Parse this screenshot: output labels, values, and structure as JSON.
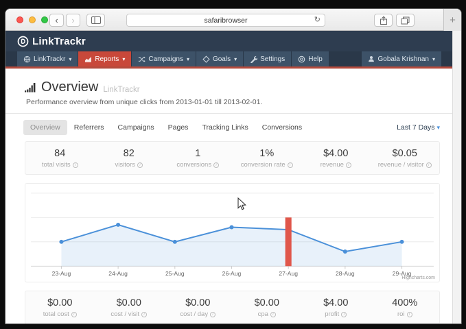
{
  "browser": {
    "url_text": "safaribrowser",
    "back_glyph": "‹",
    "forward_glyph": "›",
    "reload_glyph": "↻",
    "new_tab_glyph": "+"
  },
  "icons": {
    "caret_down": "▾",
    "info": "i"
  },
  "app": {
    "logo_text": "LinkTrackr",
    "nav": [
      {
        "label": "LinkTrackr",
        "caret": true,
        "active": false
      },
      {
        "label": "Reports",
        "caret": true,
        "active": true
      },
      {
        "label": "Campaigns",
        "caret": true,
        "active": false
      },
      {
        "label": "Goals",
        "caret": true,
        "active": false
      },
      {
        "label": "Settings",
        "caret": false,
        "active": false
      },
      {
        "label": "Help",
        "caret": false,
        "active": false
      }
    ],
    "user_name": "Gobala Krishnan"
  },
  "page": {
    "title": "Overview",
    "title_suffix": "LinkTrackr",
    "subtitle": "Performance overview from unique clicks from 2013-01-01 till 2013-02-01.",
    "tabs": [
      "Overview",
      "Referrers",
      "Campaigns",
      "Pages",
      "Tracking Links",
      "Conversions"
    ],
    "active_tab": "Overview",
    "date_range": "Last 7 Days",
    "stats_top": [
      {
        "value": "84",
        "label": "total visits"
      },
      {
        "value": "82",
        "label": "visitors"
      },
      {
        "value": "1",
        "label": "conversions"
      },
      {
        "value": "1%",
        "label": "conversion rate"
      },
      {
        "value": "$4.00",
        "label": "revenue"
      },
      {
        "value": "$0.05",
        "label": "revenue / visitor"
      }
    ],
    "stats_bottom": [
      {
        "value": "$0.00",
        "label": "total cost"
      },
      {
        "value": "$0.00",
        "label": "cost / visit"
      },
      {
        "value": "$0.00",
        "label": "cost / day"
      },
      {
        "value": "$0.00",
        "label": "cpa"
      },
      {
        "value": "$4.00",
        "label": "profit"
      },
      {
        "value": "400%",
        "label": "roi"
      }
    ]
  },
  "chart_data": {
    "type": "line",
    "categories": [
      "23-Aug",
      "24-Aug",
      "25-Aug",
      "26-Aug",
      "27-Aug",
      "28-Aug",
      "29-Aug"
    ],
    "series": [
      {
        "name": "visits",
        "type": "area-line",
        "values": [
          10,
          17,
          10,
          16,
          15,
          6,
          10
        ],
        "color": "#4a90d9",
        "fill": "rgba(74,144,217,0.13)"
      },
      {
        "name": "highlight-column",
        "type": "column",
        "values": [
          null,
          null,
          null,
          null,
          20,
          null,
          null
        ],
        "color": "#e0574b"
      }
    ],
    "ylim": [
      0,
      30
    ],
    "grid": true,
    "xlabel": "",
    "ylabel": "",
    "credit": "Highcharts.com",
    "colors": {
      "grid": "#e8e8e8",
      "axis": "#d0d0d0",
      "tick_label": "#666666"
    }
  },
  "theme": {
    "header_navy": "#2e3d50",
    "nav_item_bg": "#3d5268",
    "active_red": "#c8483a",
    "underline_red": "#b44a3c"
  }
}
